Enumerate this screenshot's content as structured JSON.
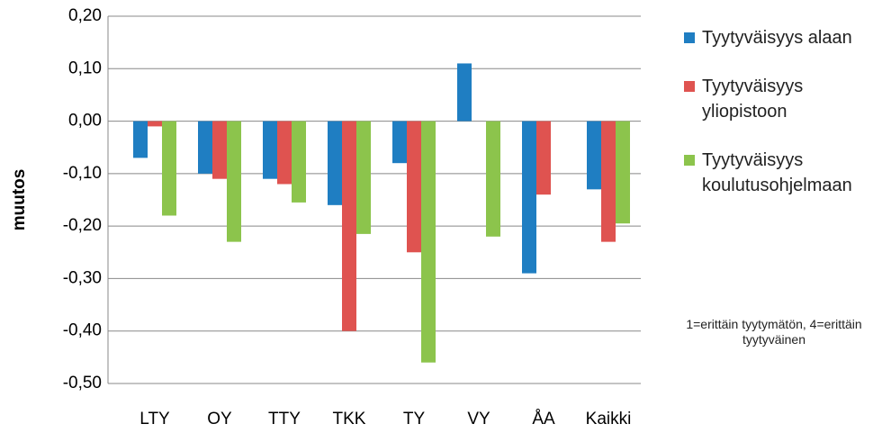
{
  "chart_data": {
    "type": "bar",
    "ylabel": "muutos",
    "categories": [
      "LTY",
      "OY",
      "TTY",
      "TKK",
      "TY",
      "VY",
      "ÅA",
      "Kaikki"
    ],
    "series": [
      {
        "name": "Tyytyväisyys alaan",
        "color": "#1f7ec2",
        "values": [
          -0.07,
          -0.1,
          -0.11,
          -0.16,
          -0.08,
          0.11,
          -0.29,
          -0.13
        ]
      },
      {
        "name": "Tyytyväisyys yliopistoon",
        "color": "#df5350",
        "values": [
          -0.01,
          -0.11,
          -0.12,
          -0.4,
          -0.25,
          null,
          -0.14,
          -0.23
        ]
      },
      {
        "name": "Tyytyväisyys koulutusohjelmaan",
        "color": "#8cc44c",
        "values": [
          -0.18,
          -0.23,
          -0.155,
          -0.215,
          -0.46,
          -0.22,
          null,
          -0.195
        ]
      }
    ],
    "ylim": [
      -0.5,
      0.2
    ],
    "yticks": [
      {
        "value": 0.2,
        "label": "0,20"
      },
      {
        "value": 0.1,
        "label": "0,10"
      },
      {
        "value": 0,
        "label": "0,00"
      },
      {
        "value": -0.1,
        "label": "-0,10"
      },
      {
        "value": -0.2,
        "label": "-0,20"
      },
      {
        "value": -0.3,
        "label": "-0,30"
      },
      {
        "value": -0.4,
        "label": "-0,40"
      },
      {
        "value": -0.5,
        "label": "-0,50"
      }
    ],
    "grid": true,
    "legend": "right",
    "annotation": "1=erittäin tyytymätön, 4=erittäin tyytyväinen"
  }
}
